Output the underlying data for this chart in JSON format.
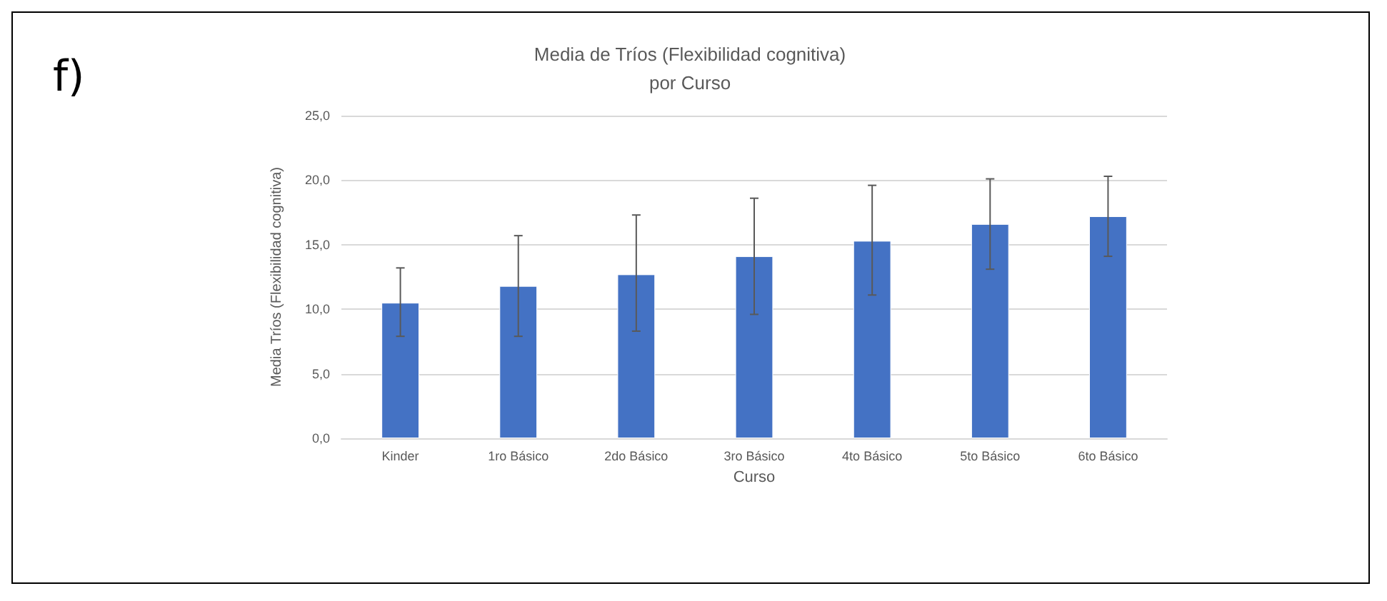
{
  "chart_data": {
    "type": "bar",
    "title": "Media de Tríos (Flexibilidad cognitiva)\npor Curso",
    "xlabel": "Curso",
    "ylabel": "Media Tríos (Flexibilidad cognitiva)",
    "annotations": [
      "f)"
    ],
    "categories": [
      "Kinder",
      "1ro Básico",
      "2do Básico",
      "3ro Básico",
      "4to Básico",
      "5to Básico",
      "6to Básico"
    ],
    "values": [
      10.5,
      11.8,
      12.7,
      14.1,
      15.3,
      16.6,
      17.2
    ],
    "errors": [
      [
        7.9,
        13.2
      ],
      [
        7.9,
        15.7
      ],
      [
        8.3,
        17.3
      ],
      [
        9.6,
        18.6
      ],
      [
        11.1,
        19.6
      ],
      [
        13.1,
        20.1
      ],
      [
        14.1,
        20.3
      ]
    ],
    "color": "#4472c4",
    "ylim": [
      0,
      25
    ],
    "yticks": [
      {
        "value": 0,
        "label": "0,0"
      },
      {
        "value": 5,
        "label": "5,0"
      },
      {
        "value": 10,
        "label": "10,0"
      },
      {
        "value": 15,
        "label": "15,0"
      },
      {
        "value": 20,
        "label": "20,0"
      },
      {
        "value": 25,
        "label": "25,0"
      }
    ],
    "grid": "y"
  }
}
